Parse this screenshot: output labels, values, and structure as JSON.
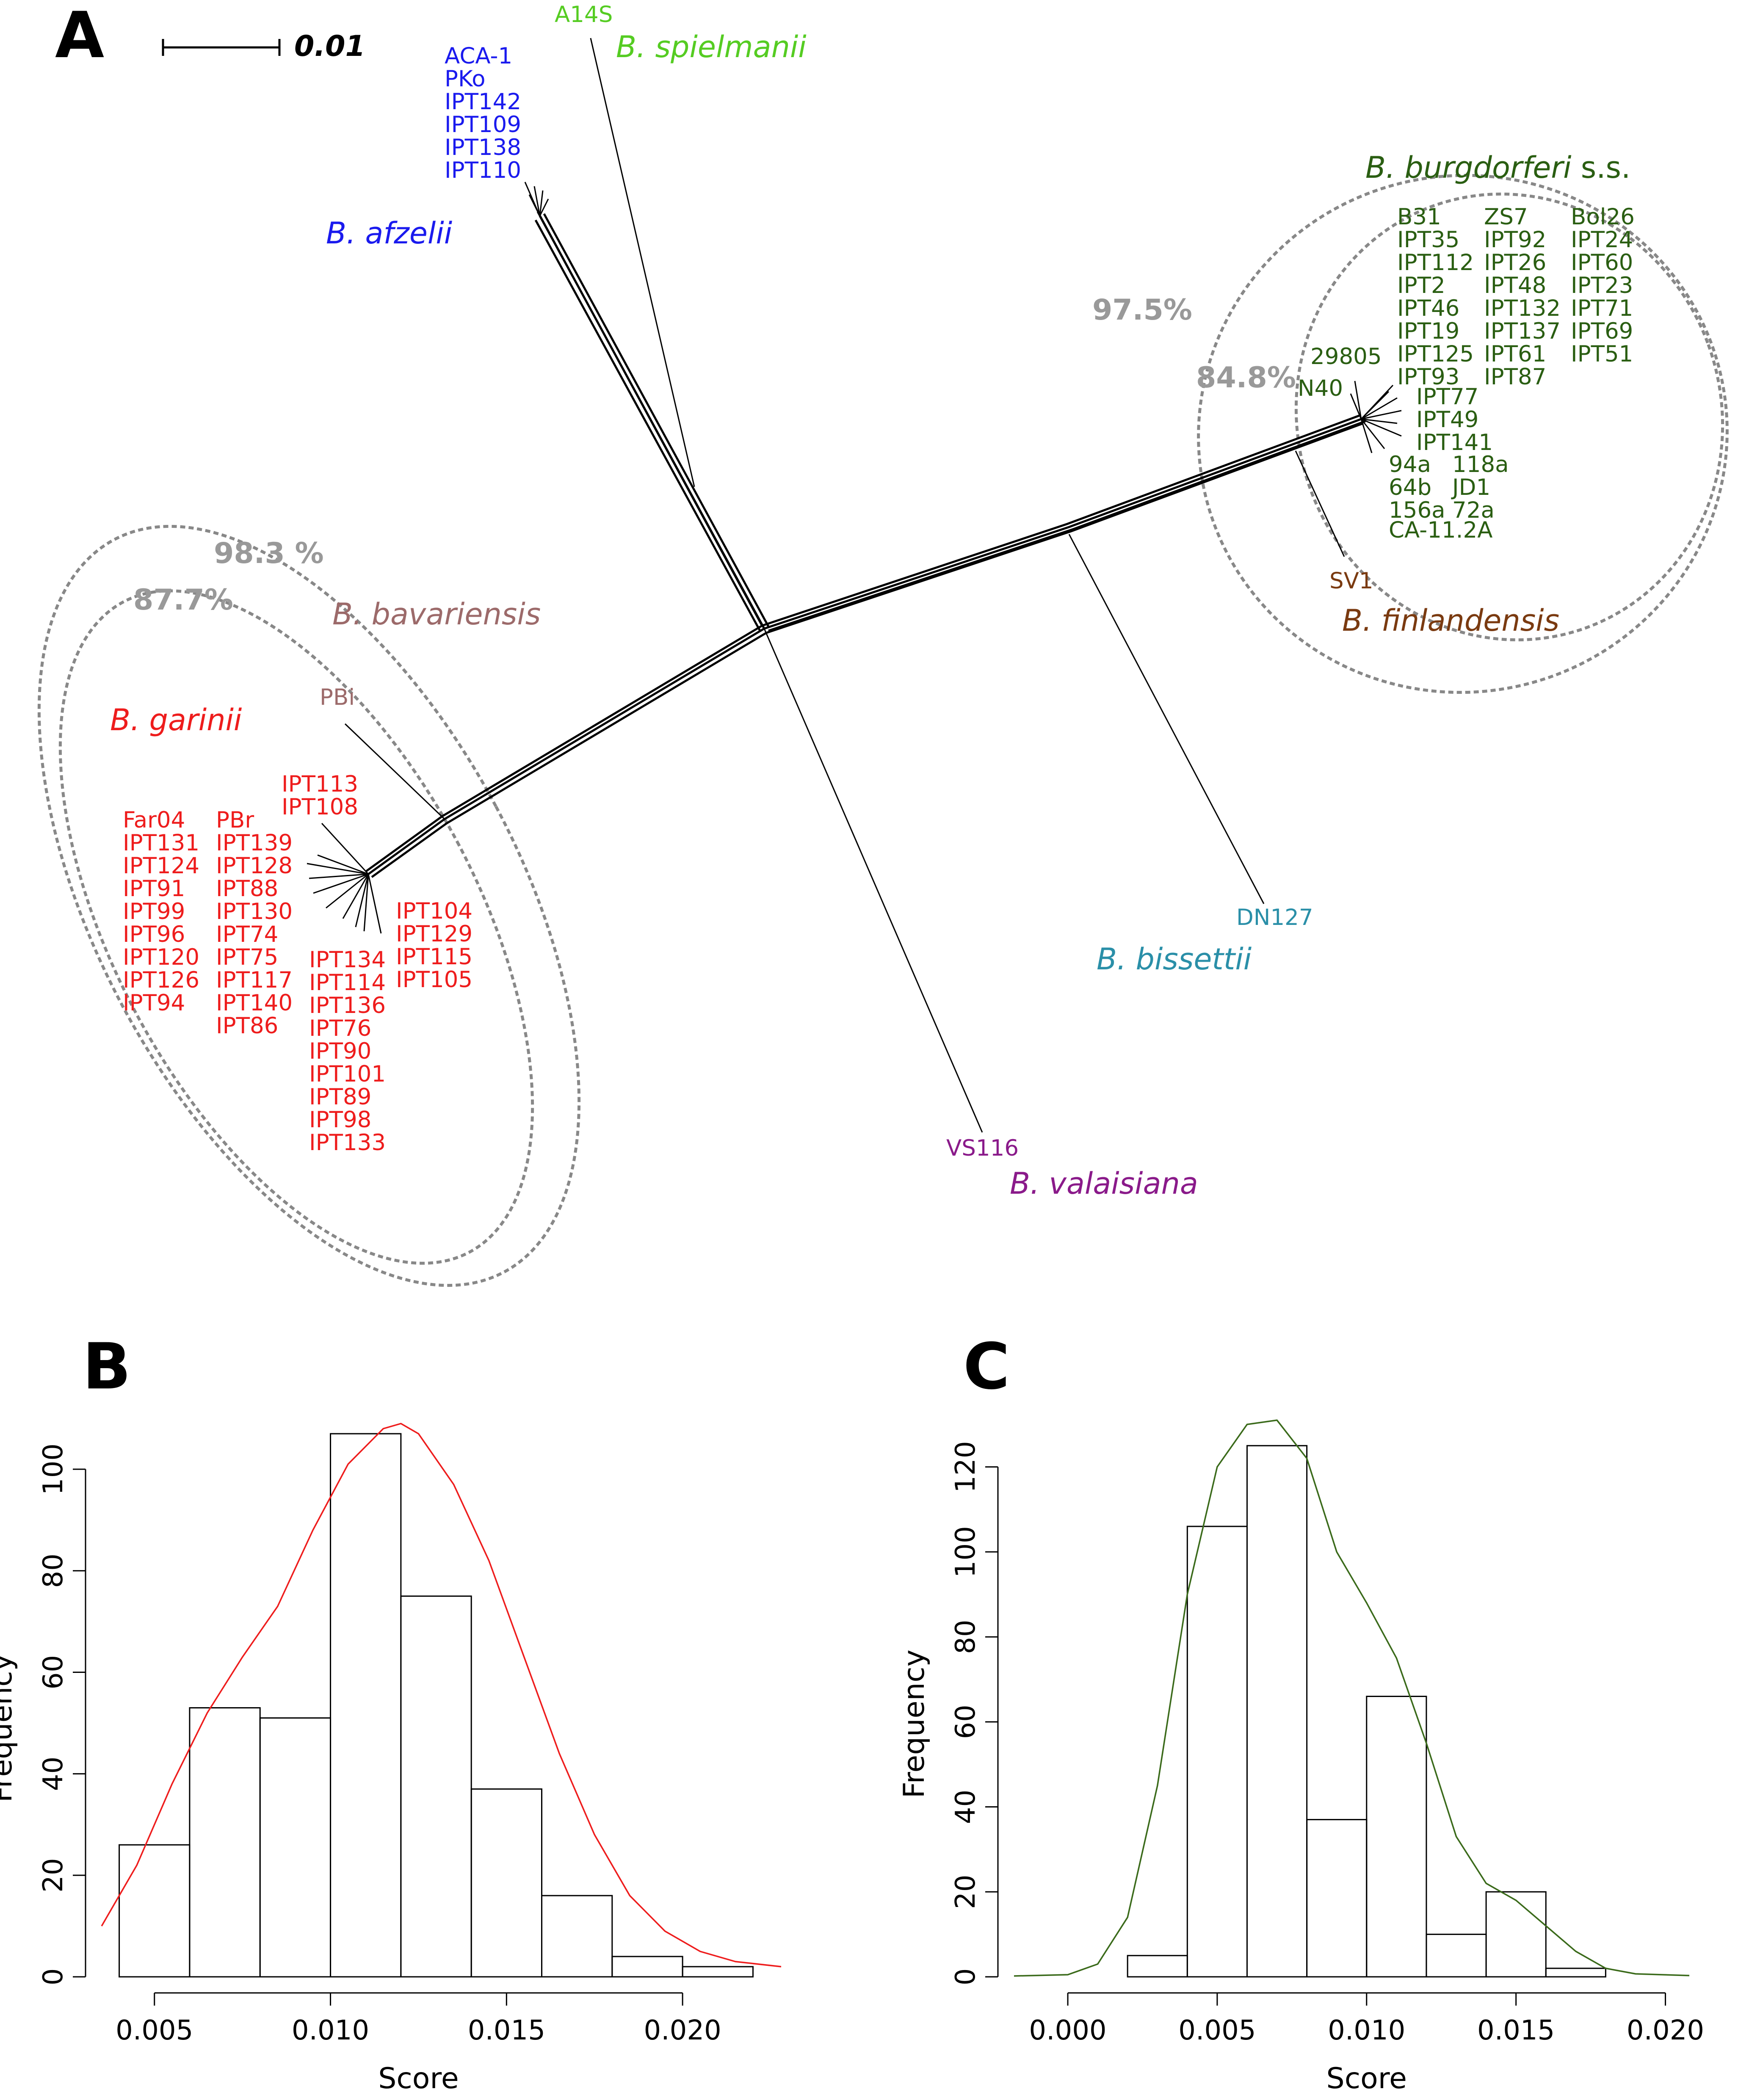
{
  "panels": {
    "A": "A",
    "B": "B",
    "C": "C"
  },
  "tree": {
    "scale_bar_label": "0.01",
    "ellipse_color": "#888888",
    "species": [
      {
        "key": "spielmanii",
        "genus": "B.",
        "epithet": "spielmanii",
        "suffix": "",
        "color": "#55cc22"
      },
      {
        "key": "afzelii",
        "genus": "B.",
        "epithet": "afzelii",
        "suffix": "",
        "color": "#1a1aee"
      },
      {
        "key": "burgdorferi",
        "genus": "B.",
        "epithet": "burgdorferi",
        "suffix": " s.s.",
        "color": "#2a5e12"
      },
      {
        "key": "finlandensis",
        "genus": "B.",
        "epithet": "finlandensis",
        "suffix": "",
        "color": "#7a3a10"
      },
      {
        "key": "bavariensis",
        "genus": "B.",
        "epithet": "bavariensis",
        "suffix": "",
        "color": "#9c6a6a"
      },
      {
        "key": "garinii",
        "genus": "B.",
        "epithet": "garinii",
        "suffix": "",
        "color": "#ee1c1c"
      },
      {
        "key": "bissettii",
        "genus": "B.",
        "epithet": "bissettii",
        "suffix": "",
        "color": "#2a8fa8"
      },
      {
        "key": "valaisiana",
        "genus": "B.",
        "epithet": "valaisiana",
        "suffix": "",
        "color": "#8a1a8a"
      }
    ],
    "percentages": {
      "burgdorferi_outer": "97.5%",
      "burgdorferi_inner": "84.8%",
      "garinii_outer": "98.3 %",
      "garinii_inner": "87.7%"
    },
    "leaf_groups": {
      "spielmanii": [
        "A14S"
      ],
      "afzelii": [
        "ACA-1",
        "PKo",
        "IPT142",
        "IPT109",
        "IPT138",
        "IPT110"
      ],
      "burgdorferi_col1": [
        "B31",
        "IPT35",
        "IPT112",
        "IPT2",
        "IPT46",
        "IPT19",
        "IPT125",
        "IPT93"
      ],
      "burgdorferi_col2": [
        "ZS7",
        "IPT92",
        "IPT26",
        "IPT48",
        "IPT132",
        "IPT137",
        "IPT61",
        "IPT87"
      ],
      "burgdorferi_col3": [
        "Bol26",
        "IPT24",
        "IPT60",
        "IPT23",
        "IPT71",
        "IPT69",
        "IPT51"
      ],
      "burgdorferi_mid": [
        "IPT77",
        "IPT49",
        "IPT141"
      ],
      "burgdorferi_left_top": [
        "29805"
      ],
      "burgdorferi_left_n40": [
        "N40"
      ],
      "burgdorferi_low1": [
        "94a",
        "64b",
        "156a"
      ],
      "burgdorferi_low2": [
        "118a",
        "JD1",
        "72a"
      ],
      "burgdorferi_ca": [
        "CA-11.2A"
      ],
      "finlandensis": [
        "SV1"
      ],
      "bavariensis": [
        "PBi"
      ],
      "garinii_col1": [
        "Far04",
        "IPT131",
        "IPT124",
        "IPT91",
        "IPT99",
        "IPT96",
        "IPT120",
        "IPT126",
        "IPT94"
      ],
      "garinii_col2": [
        "PBr",
        "IPT139",
        "IPT128",
        "IPT88",
        "IPT130",
        "IPT74",
        "IPT75",
        "IPT117",
        "IPT140",
        "IPT86"
      ],
      "garinii_top": [
        "IPT113",
        "IPT108"
      ],
      "garinii_col3": [
        "IPT134",
        "IPT114",
        "IPT136",
        "IPT76",
        "IPT90",
        "IPT101",
        "IPT89",
        "IPT98",
        "IPT133"
      ],
      "garinii_col4": [
        "IPT104",
        "IPT129",
        "IPT115",
        "IPT105"
      ],
      "bissettii": [
        "DN127"
      ],
      "valaisiana": [
        "VS116"
      ]
    }
  },
  "chart_data": [
    {
      "panel": "B",
      "type": "bar",
      "xlabel": "Score",
      "ylabel": "Frequency",
      "bin_edges": [
        0.004,
        0.006,
        0.008,
        0.01,
        0.012,
        0.014,
        0.016,
        0.018,
        0.02,
        0.022
      ],
      "values": [
        26,
        53,
        51,
        107,
        75,
        37,
        16,
        4,
        2
      ],
      "xlim": [
        0.0035,
        0.0228
      ],
      "ylim": [
        0,
        108
      ],
      "xticks": [
        0.005,
        0.01,
        0.015,
        0.02
      ],
      "xtick_labels": [
        "0.005",
        "0.010",
        "0.015",
        "0.020"
      ],
      "yticks": [
        0,
        20,
        40,
        60,
        80,
        100
      ],
      "ytick_labels": [
        "0",
        "20",
        "40",
        "60",
        "80",
        "100"
      ],
      "curve_color": "#ee1c1c",
      "density_curve": {
        "x": [
          0.0035,
          0.0045,
          0.0055,
          0.0065,
          0.0075,
          0.0085,
          0.0095,
          0.0105,
          0.0115,
          0.012,
          0.0125,
          0.0135,
          0.0145,
          0.0155,
          0.0165,
          0.0175,
          0.0185,
          0.0195,
          0.0205,
          0.0215,
          0.0228
        ],
        "y": [
          10,
          22,
          38,
          52,
          63,
          73,
          88,
          101,
          108,
          109,
          107,
          97,
          82,
          63,
          44,
          28,
          16,
          9,
          5,
          3,
          2
        ]
      },
      "grid": false
    },
    {
      "panel": "C",
      "type": "bar",
      "xlabel": "Score",
      "ylabel": "Frequency",
      "bin_edges": [
        0.002,
        0.004,
        0.006,
        0.008,
        0.01,
        0.012,
        0.014,
        0.016,
        0.018
      ],
      "values": [
        5,
        106,
        125,
        37,
        66,
        10,
        20,
        2
      ],
      "xlim": [
        -0.0018,
        0.0208
      ],
      "ylim": [
        0,
        131
      ],
      "xticks": [
        0.0,
        0.005,
        0.01,
        0.015,
        0.02
      ],
      "xtick_labels": [
        "0.000",
        "0.005",
        "0.010",
        "0.015",
        "0.020"
      ],
      "yticks": [
        0,
        20,
        40,
        60,
        80,
        100,
        120
      ],
      "ytick_labels": [
        "0",
        "20",
        "40",
        "60",
        "80",
        "100",
        "120"
      ],
      "curve_color": "#3a6a1a",
      "density_curve": {
        "x": [
          -0.0018,
          0.0,
          0.001,
          0.002,
          0.003,
          0.004,
          0.005,
          0.006,
          0.007,
          0.008,
          0.009,
          0.01,
          0.011,
          0.012,
          0.013,
          0.014,
          0.015,
          0.016,
          0.017,
          0.018,
          0.019,
          0.0208
        ],
        "y": [
          0.2,
          0.5,
          3,
          14,
          45,
          90,
          120,
          130,
          131,
          122,
          100,
          88,
          75,
          55,
          33,
          22,
          18,
          12,
          6,
          2,
          0.7,
          0.3
        ]
      },
      "grid": false
    }
  ]
}
